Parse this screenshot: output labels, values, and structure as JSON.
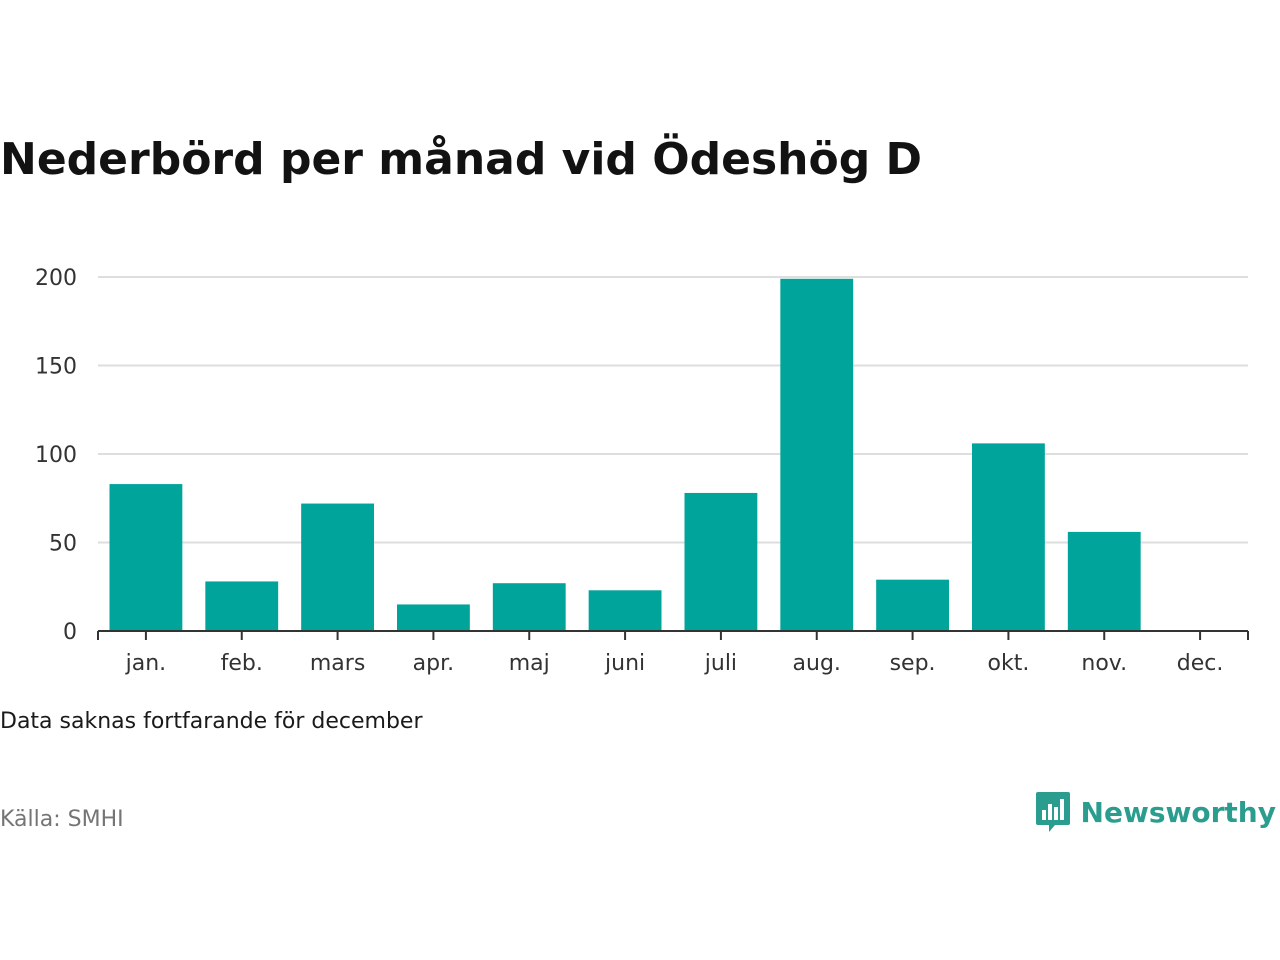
{
  "title": "Nederbörd per månad vid Ödeshög D",
  "note": "Data saknas fortfarande för december",
  "source": "Källa: SMHI",
  "brand": {
    "name": "Newsworthy",
    "icon": "newsworthy-logo-icon",
    "color": "#2a9d8f"
  },
  "colors": {
    "bar": "#00a49a",
    "grid": "#dedede",
    "axis": "#333333"
  },
  "chart_data": {
    "type": "bar",
    "categories": [
      "jan.",
      "feb.",
      "mars",
      "apr.",
      "maj",
      "juni",
      "juli",
      "aug.",
      "sep.",
      "okt.",
      "nov.",
      "dec."
    ],
    "values": [
      83,
      28,
      72,
      15,
      27,
      23,
      78,
      199,
      29,
      106,
      56,
      null
    ],
    "yticks": [
      0,
      50,
      100,
      150,
      200
    ],
    "ylim": [
      0,
      200
    ],
    "title": "Nederbörd per månad vid Ödeshög D",
    "xlabel": "",
    "ylabel": "",
    "grid": true,
    "legend": "none"
  }
}
